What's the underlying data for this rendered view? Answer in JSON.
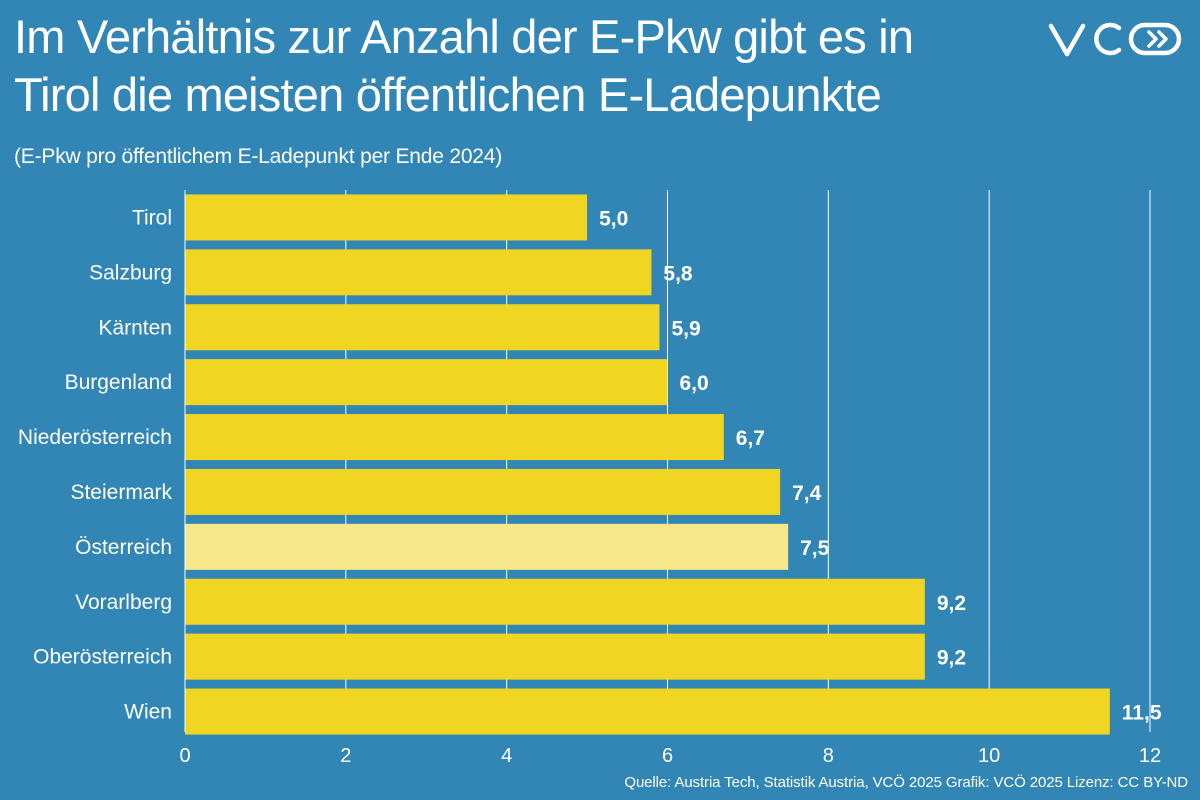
{
  "header": {
    "title_line1": "Im Verhältnis zur Anzahl der E-Pkw gibt es in",
    "title_line2": "Tirol die meisten öffentlichen E-Ladepunkte",
    "subtitle": "(E-Pkw pro öffentlichem E-Ladepunkt per Ende 2024)",
    "logo_icon": "vcoe-logo-icon"
  },
  "footer": {
    "source": "Quelle: Austria Tech, Statistik Austria, VCÖ 2025 Grafik: VCÖ 2025 Lizenz: CC BY-ND"
  },
  "colors": {
    "background": "#3186B5",
    "bar": "#F0D522",
    "bar_highlight": "#F6E78B",
    "text": "#FFFFFF",
    "gridline": "#FFFFFF"
  },
  "chart_data": {
    "type": "bar",
    "orientation": "horizontal",
    "categories": [
      "Tirol",
      "Salzburg",
      "Kärnten",
      "Burgenland",
      "Niederösterreich",
      "Steiermark",
      "Österreich",
      "Vorarlberg",
      "Oberösterreich",
      "Wien"
    ],
    "values": [
      5.0,
      5.8,
      5.9,
      6.0,
      6.7,
      7.4,
      7.5,
      9.2,
      9.2,
      11.5
    ],
    "value_labels": [
      "5,0",
      "5,8",
      "5,9",
      "6,0",
      "6,7",
      "7,4",
      "7,5",
      "9,2",
      "9,2",
      "11,5"
    ],
    "highlight": [
      "Österreich"
    ],
    "xlim": [
      0,
      12
    ],
    "xticks": [
      0,
      2,
      4,
      6,
      8,
      10,
      12
    ],
    "grid": true
  }
}
